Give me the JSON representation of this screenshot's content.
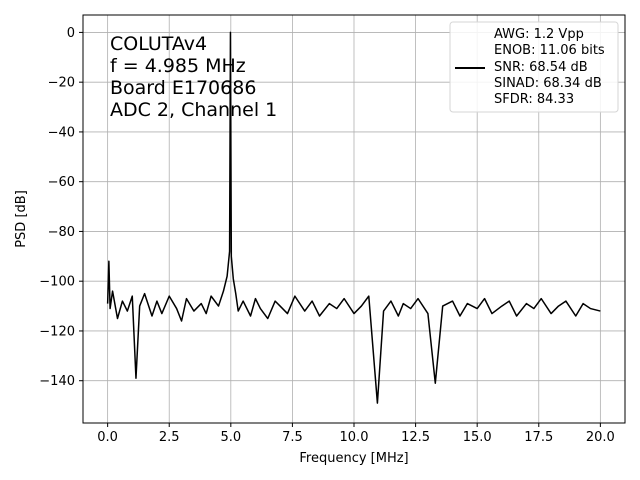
{
  "chart_data": {
    "type": "line",
    "xlabel": "Frequency [MHz]",
    "ylabel": "PSD [dB]",
    "xlim": [
      -1.0,
      21.0
    ],
    "ylim": [
      -157,
      7
    ],
    "xticks": [
      0.0,
      2.5,
      5.0,
      7.5,
      10.0,
      12.5,
      15.0,
      17.5,
      20.0
    ],
    "xtick_labels": [
      "0.0",
      "2.5",
      "5.0",
      "7.5",
      "10.0",
      "12.5",
      "15.0",
      "17.5",
      "20.0"
    ],
    "yticks": [
      0,
      -20,
      -40,
      -60,
      -80,
      -100,
      -120,
      -140
    ],
    "ytick_labels": [
      "0",
      "−20",
      "−40",
      "−60",
      "−80",
      "−100",
      "−120",
      "−140"
    ],
    "grid": true,
    "legend_position": "top-right",
    "line_color": "#000000",
    "annotation_lines": [
      "COLUTAv4",
      "f = 4.985 MHz",
      "Board E170686",
      "ADC 2, Channel 1"
    ],
    "legend_lines": [
      "AWG: 1.2 Vpp",
      "ENOB: 11.06 bits",
      "SNR: 68.54 dB",
      "SINAD: 68.34 dB",
      "SFDR: 84.33"
    ],
    "series": [
      {
        "x": [
          0.0,
          0.05,
          0.1,
          0.2,
          0.4,
          0.6,
          0.8,
          1.0,
          1.15,
          1.3,
          1.5,
          1.8,
          2.0,
          2.2,
          2.5,
          2.8,
          3.0,
          3.2,
          3.5,
          3.8,
          4.0,
          4.2,
          4.5,
          4.7,
          4.85,
          4.95,
          4.985,
          5.02,
          5.1,
          5.2,
          5.3,
          5.5,
          5.8,
          6.0,
          6.2,
          6.5,
          6.8,
          7.0,
          7.3,
          7.6,
          8.0,
          8.3,
          8.6,
          9.0,
          9.3,
          9.6,
          10.0,
          10.3,
          10.6,
          10.95,
          11.2,
          11.5,
          11.8,
          12.0,
          12.3,
          12.6,
          13.0,
          13.3,
          13.6,
          14.0,
          14.3,
          14.6,
          15.0,
          15.3,
          15.6,
          16.0,
          16.3,
          16.6,
          17.0,
          17.3,
          17.6,
          18.0,
          18.3,
          18.6,
          19.0,
          19.3,
          19.6,
          20.0
        ],
        "y": [
          -109,
          -92,
          -111,
          -104,
          -115,
          -108,
          -112,
          -106,
          -139,
          -110,
          -105,
          -114,
          -108,
          -113,
          -106,
          -111,
          -116,
          -107,
          -112,
          -109,
          -113,
          -106,
          -110,
          -104,
          -98,
          -88,
          0,
          -90,
          -99,
          -105,
          -112,
          -108,
          -114,
          -107,
          -111,
          -115,
          -108,
          -110,
          -113,
          -106,
          -112,
          -108,
          -114,
          -109,
          -111,
          -107,
          -113,
          -110,
          -106,
          -149,
          -112,
          -108,
          -114,
          -109,
          -111,
          -107,
          -113,
          -141,
          -110,
          -108,
          -114,
          -109,
          -111,
          -107,
          -113,
          -110,
          -108,
          -114,
          -109,
          -111,
          -107,
          -113,
          -110,
          -108,
          -114,
          -109,
          -111,
          -112
        ]
      }
    ]
  }
}
